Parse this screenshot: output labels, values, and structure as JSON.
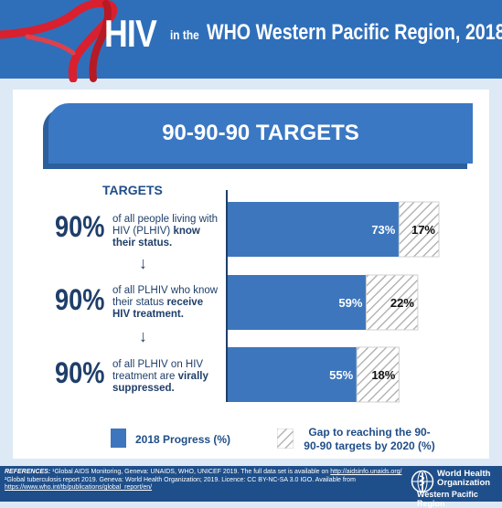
{
  "header": {
    "title_big": "HIV",
    "title_small": "in the",
    "title_rest": "WHO Western Pacific Region, 2018",
    "bg_color": "#2f6fba",
    "ribbon_color": "#d9202e"
  },
  "banner": {
    "text": "90-90-90 TARGETS"
  },
  "targets_heading": "TARGETS",
  "targets": [
    {
      "percent": "90%",
      "desc_plain": "of all people living with HIV (PLHIV)",
      "desc_bold": "know their status."
    },
    {
      "percent": "90%",
      "desc_plain": "of all PLHIV who know their status",
      "desc_bold": "receive HIV treatment."
    },
    {
      "percent": "90%",
      "desc_plain": "of all PLHIV on HIV treatment are",
      "desc_bold": "virally suppressed."
    }
  ],
  "arrow_glyph": "↓",
  "chart_data": {
    "type": "bar",
    "orientation": "horizontal",
    "stacked": true,
    "categories": [
      "know their status",
      "receive HIV treatment",
      "virally suppressed"
    ],
    "series": [
      {
        "name": "2018 Progress (%)",
        "values": [
          73,
          59,
          55
        ],
        "labels": [
          "73%",
          "59%",
          "55%"
        ],
        "color": "#3d76bc",
        "fill": "solid"
      },
      {
        "name": "Gap to reaching the 90-90-90 targets by 2020 (%)",
        "values": [
          17,
          22,
          18
        ],
        "labels": [
          "17%",
          "22%",
          "18%"
        ],
        "color": "#bdbdbd",
        "fill": "hatched"
      }
    ],
    "xlim": [
      0,
      90
    ]
  },
  "legend": {
    "progress_label": "2018 Progress (%)",
    "gap_label": "Gap to reaching the 90-90-90 targets by 2020 (%)"
  },
  "footer": {
    "refs_label": "REFERENCES:",
    "ref1": "¹Global AIDS Monitoring, Geneva: UNAIDS, WHO, UNICEF 2019. The full data set is available on",
    "ref1_link": "http://aidsinfo.unaids.org/",
    "ref2": "²Global tuberculosis report 2019. Geneva: World Health Organization; 2019. Licence: CC BY-NC-SA 3.0 IGO. Available from",
    "ref2_link": "https://www.who.int/tb/publications/global_report/en/",
    "org_name_line1": "World Health",
    "org_name_line2": "Organization",
    "org_region": "Western Pacific Region"
  }
}
